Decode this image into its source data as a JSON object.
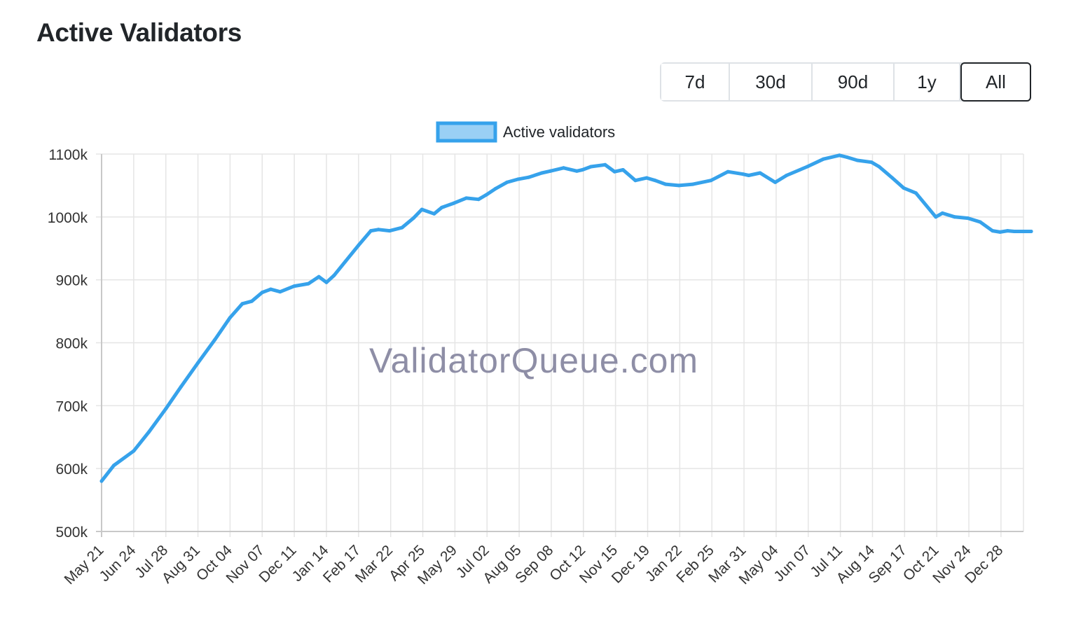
{
  "header": {
    "title": "Active Validators"
  },
  "range_selector": {
    "buttons": [
      {
        "label": "7d",
        "active": false
      },
      {
        "label": "30d",
        "active": false
      },
      {
        "label": "90d",
        "active": false
      },
      {
        "label": "1y",
        "active": false
      },
      {
        "label": "All",
        "active": true
      }
    ]
  },
  "watermark": "ValidatorQueue.com",
  "chart_data": {
    "type": "line",
    "title": "",
    "xlabel": "",
    "ylabel": "",
    "ylim": [
      500000,
      1100000
    ],
    "y_ticks": [
      500000,
      600000,
      700000,
      800000,
      900000,
      1000000,
      1100000
    ],
    "y_tick_labels": [
      "500k",
      "600k",
      "700k",
      "800k",
      "900k",
      "1000k",
      "1100k"
    ],
    "x_tick_labels": [
      "May 21",
      "Jun 24",
      "Jul 28",
      "Aug 31",
      "Oct 04",
      "Nov 07",
      "Dec 11",
      "Jan 14",
      "Feb 17",
      "Mar 22",
      "Apr 25",
      "May 29",
      "Jul 02",
      "Aug 05",
      "Sep 08",
      "Oct 12",
      "Nov 15",
      "Dec 19",
      "Jan 22",
      "Feb 25",
      "Mar 31",
      "May 04",
      "Jun 07",
      "Jul 11",
      "Aug 14",
      "Sep 17",
      "Oct 21",
      "Nov 24",
      "Dec 28"
    ],
    "grid": true,
    "legend_position": "top",
    "colors": {
      "line": "#36a2eb",
      "legend_fill": "#9ad0f5",
      "grid": "#e5e5e5"
    },
    "series": [
      {
        "name": "Active validators",
        "x": [
          "May 21",
          "Jun 03",
          "Jun 24",
          "Jul 10",
          "Jul 28",
          "Aug 13",
          "Aug 31",
          "Sep 18",
          "Oct 04",
          "Oct 17",
          "Oct 27",
          "Nov 07",
          "Nov 16",
          "Nov 26",
          "Dec 11",
          "Dec 26",
          "Jan 06",
          "Jan 14",
          "Jan 22",
          "Feb 03",
          "Feb 17",
          "Mar 02",
          "Mar 10",
          "Mar 22",
          "Apr 04",
          "Apr 16",
          "Apr 25",
          "May 08",
          "May 16",
          "May 29",
          "Jun 11",
          "Jun 24",
          "Jul 02",
          "Jul 12",
          "Jul 24",
          "Aug 05",
          "Aug 16",
          "Aug 30",
          "Sep 08",
          "Sep 22",
          "Oct 06",
          "Oct 12",
          "Oct 21",
          "Nov 05",
          "Nov 15",
          "Nov 24",
          "Dec 07",
          "Dec 19",
          "Dec 28",
          "Jan 08",
          "Jan 22",
          "Feb 06",
          "Feb 25",
          "Mar 15",
          "Mar 31",
          "Apr 06",
          "Apr 18",
          "May 04",
          "May 16",
          "Jun 07",
          "Jun 24",
          "Jul 11",
          "Jul 19",
          "Jul 30",
          "Aug 14",
          "Aug 22",
          "Sep 05",
          "Sep 17",
          "Sep 30",
          "Oct 21",
          "Oct 28",
          "Nov 10",
          "Nov 24",
          "Dec 07",
          "Dec 20",
          "Dec 28",
          "Jan 05",
          "Jan 12",
          "Jan 20",
          "Jan 30"
        ],
        "values": [
          580000,
          605000,
          628000,
          658000,
          695000,
          730000,
          768000,
          805000,
          840000,
          862000,
          866000,
          880000,
          885000,
          881000,
          890000,
          894000,
          905000,
          896000,
          907000,
          929000,
          955000,
          978000,
          980000,
          978000,
          983000,
          998000,
          1012000,
          1005000,
          1015000,
          1022000,
          1030000,
          1028000,
          1035000,
          1045000,
          1055000,
          1060000,
          1063000,
          1070000,
          1073000,
          1078000,
          1073000,
          1075000,
          1080000,
          1083000,
          1072000,
          1075000,
          1058000,
          1062000,
          1058000,
          1052000,
          1050000,
          1052000,
          1058000,
          1072000,
          1068000,
          1066000,
          1070000,
          1055000,
          1066000,
          1080000,
          1092000,
          1098000,
          1095000,
          1090000,
          1087000,
          1080000,
          1062000,
          1046000,
          1038000,
          1000000,
          1006000,
          1000000,
          998000,
          992000,
          978000,
          976000,
          978000,
          977000,
          977000,
          977000
        ]
      }
    ]
  }
}
